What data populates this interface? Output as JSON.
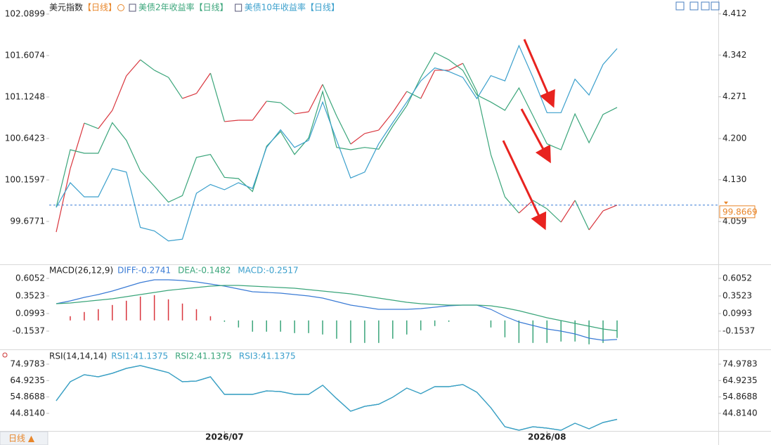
{
  "toolbar": {
    "period_button": "日线 ▲"
  },
  "chart_data": [
    {
      "type": "line",
      "period": "【日线】",
      "period_color": "#e8862a",
      "series": [
        {
          "name": "美元指数",
          "label_color": "#222222",
          "up_color": "#d9363e",
          "down_color": "#3aa57a",
          "values": [
            99.554,
            100.291,
            100.822,
            100.757,
            100.969,
            101.37,
            101.558,
            101.436,
            101.354,
            101.108,
            101.166,
            101.403,
            100.839,
            100.855,
            100.855,
            101.076,
            101.059,
            100.929,
            100.953,
            101.272,
            100.904,
            100.577,
            100.7,
            100.74,
            100.945,
            101.19,
            101.108,
            101.436,
            101.436,
            101.517,
            101.19,
            100.454,
            99.963,
            99.775,
            99.923,
            99.824,
            99.669,
            99.923,
            99.579,
            99.8,
            99.867
          ]
        },
        {
          "name": "美债2年收益率",
          "color": "#3aa57a",
          "axis": "y2",
          "values": [
            4.083,
            4.181,
            4.175,
            4.175,
            4.227,
            4.197,
            4.145,
            4.119,
            4.092,
            4.103,
            4.168,
            4.173,
            4.134,
            4.132,
            4.11,
            4.187,
            4.212,
            4.173,
            4.201,
            4.28,
            4.185,
            4.181,
            4.185,
            4.182,
            4.221,
            4.256,
            4.304,
            4.346,
            4.334,
            4.316,
            4.274,
            4.262,
            4.248,
            4.286,
            4.239,
            4.191,
            4.181,
            4.242,
            4.193,
            4.241,
            4.253
          ]
        },
        {
          "name": "美债10年收益率",
          "color": "#3a9fcc",
          "axis": "y2",
          "values": [
            4.083,
            4.125,
            4.101,
            4.101,
            4.149,
            4.143,
            4.049,
            4.043,
            4.026,
            4.029,
            4.107,
            4.122,
            4.113,
            4.125,
            4.115,
            4.185,
            4.215,
            4.185,
            4.197,
            4.262,
            4.197,
            4.133,
            4.143,
            4.191,
            4.227,
            4.262,
            4.298,
            4.32,
            4.314,
            4.304,
            4.268,
            4.307,
            4.298,
            4.358,
            4.304,
            4.244,
            4.244,
            4.301,
            4.274,
            4.326,
            4.353
          ]
        }
      ],
      "ylim": [
        99.211,
        102.188
      ],
      "yticks": [
        102.0899,
        101.6074,
        101.1248,
        100.6423,
        100.1597,
        99.6771
      ],
      "y2lim": [
        3.991,
        4.426
      ],
      "y2ticks": [
        4.412,
        4.342,
        4.271,
        {
          "value": 4.2,
          "label": "4.200"
        },
        {
          "value": 4.13,
          "label": "4.130"
        },
        4.059
      ],
      "reference_line": 99.8669,
      "reference_color": "#e8862a",
      "reference_line_color": "#3a7bd5"
    },
    {
      "type": "macd",
      "title": "MACD(26,12,9)",
      "series": [
        {
          "name": "DIFF:-0.2741",
          "color": "#3a7bd5",
          "values": [
            0.2408,
            0.2812,
            0.3318,
            0.3723,
            0.4228,
            0.4835,
            0.5442,
            0.5847,
            0.5847,
            0.5746,
            0.5544,
            0.524,
            0.4937,
            0.4532,
            0.4127,
            0.4026,
            0.3925,
            0.3723,
            0.352,
            0.3217,
            0.2711,
            0.2205,
            0.1902,
            0.1598,
            0.1598,
            0.1598,
            0.1699,
            0.1902,
            0.2104,
            0.2205,
            0.2205,
            0.1598,
            0.0587,
            -0.0223,
            -0.0728,
            -0.1234,
            -0.1538,
            -0.1942,
            -0.2549,
            -0.2853,
            -0.2741
          ]
        },
        {
          "name": "DEA:-0.1482",
          "color": "#3aa57a",
          "values": [
            0.2408,
            0.2509,
            0.2711,
            0.2913,
            0.3116,
            0.3419,
            0.3723,
            0.4026,
            0.433,
            0.4532,
            0.4734,
            0.4937,
            0.5038,
            0.5038,
            0.4937,
            0.4835,
            0.4734,
            0.4633,
            0.4431,
            0.4228,
            0.4026,
            0.3824,
            0.352,
            0.3217,
            0.2913,
            0.261,
            0.2408,
            0.2306,
            0.2205,
            0.2205,
            0.2205,
            0.2104,
            0.1801,
            0.1396,
            0.089,
            0.0384,
            -0.002,
            -0.0425,
            -0.083,
            -0.1234,
            -0.1482
          ]
        },
        {
          "name": "MACD:-0.2517",
          "kind": "bar",
          "color": "#3a9fcc",
          "up_color": "#d9363e",
          "down_color": "#3aa57a",
          "values": [
            0,
            0.0606,
            0.1214,
            0.162,
            0.2224,
            0.2832,
            0.3438,
            0.3642,
            0.3034,
            0.2428,
            0.162,
            0.0606,
            -0.0202,
            -0.1012,
            -0.162,
            -0.1618,
            -0.1618,
            -0.182,
            -0.1822,
            -0.2022,
            -0.263,
            -0.3238,
            -0.3236,
            -0.3238,
            -0.263,
            -0.2024,
            -0.1418,
            -0.0808,
            -0.0202,
            0,
            0,
            -0.1012,
            -0.2428,
            -0.3238,
            -0.3236,
            -0.3236,
            -0.3036,
            -0.3034,
            -0.3438,
            -0.3238,
            -0.2517
          ]
        }
      ],
      "ylim": [
        -0.4168,
        0.6457
      ],
      "yticks": [
        0.6052,
        0.3523,
        0.0993,
        -0.1537
      ]
    },
    {
      "type": "line",
      "title": "RSI(14,14,14)",
      "categories": [
        null,
        null,
        null,
        null,
        null,
        null,
        null,
        null,
        null,
        null,
        null,
        null,
        "2026/07",
        null,
        null,
        null,
        null,
        null,
        null,
        null,
        null,
        null,
        null,
        null,
        null,
        null,
        null,
        null,
        null,
        null,
        null,
        null,
        null,
        null,
        null,
        "2026/08",
        null,
        null,
        null,
        null,
        null
      ],
      "series": [
        {
          "name": "RSI1:41.1375",
          "color": "#3a9fcc",
          "values": [
            52.57,
            64.205,
            68.514,
            67.222,
            69.376,
            72.393,
            74.117,
            71.962,
            69.807,
            64.205,
            64.636,
            67.222,
            56.449,
            56.449,
            56.449,
            58.603,
            58.172,
            56.449,
            56.449,
            62.051,
            53.863,
            46.106,
            49.123,
            50.416,
            54.725,
            60.327,
            56.879,
            61.189,
            61.189,
            62.482,
            57.742,
            48.261,
            36.626,
            34.472,
            36.626,
            35.764,
            34.472,
            38.781,
            35.334,
            39.212,
            41.1375
          ]
        },
        {
          "name": "RSI2:41.1375",
          "color": "#3aa57a",
          "values": [
            52.57,
            64.205,
            68.514,
            67.222,
            69.376,
            72.393,
            74.117,
            71.962,
            69.807,
            64.205,
            64.636,
            67.222,
            56.449,
            56.449,
            56.449,
            58.603,
            58.172,
            56.449,
            56.449,
            62.051,
            53.863,
            46.106,
            49.123,
            50.416,
            54.725,
            60.327,
            56.879,
            61.189,
            61.189,
            62.482,
            57.742,
            48.261,
            36.626,
            34.472,
            36.626,
            35.764,
            34.472,
            38.781,
            35.334,
            39.212,
            41.1375
          ]
        },
        {
          "name": "RSI3:41.1375",
          "color": "#3a9fcc",
          "values": [
            52.57,
            64.205,
            68.514,
            67.222,
            69.376,
            72.393,
            74.117,
            71.962,
            69.807,
            64.205,
            64.636,
            67.222,
            56.449,
            56.449,
            56.449,
            58.603,
            58.172,
            56.449,
            56.449,
            62.051,
            53.863,
            46.106,
            49.123,
            50.416,
            54.725,
            60.327,
            56.879,
            61.189,
            61.189,
            62.482,
            57.742,
            48.261,
            36.626,
            34.472,
            36.626,
            35.764,
            34.472,
            38.781,
            35.334,
            39.212,
            41.1375
          ]
        }
      ],
      "ylim": [
        33.61,
        77.564
      ],
      "yticks": [
        74.9783,
        64.9235,
        54.8688,
        {
          "value": 44.814,
          "label": "44.8140"
        }
      ]
    }
  ]
}
